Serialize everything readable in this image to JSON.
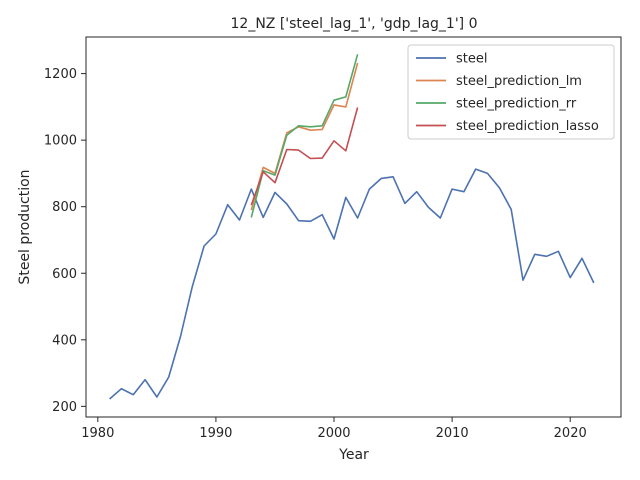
{
  "chart_data": {
    "type": "line",
    "title": "12_NZ ['steel_lag_1', 'gdp_lag_1'] 0",
    "xlabel": "Year",
    "ylabel": "Steel production",
    "xlim": [
      1979,
      2024.3
    ],
    "ylim": [
      168,
      1310
    ],
    "xticks": [
      1980,
      1990,
      2000,
      2010,
      2020
    ],
    "yticks": [
      200,
      400,
      600,
      800,
      1000,
      1200
    ],
    "grid": false,
    "legend": "top-right",
    "series": [
      {
        "name": "steel",
        "color": "#4c72b0",
        "x": [
          1981,
          1982,
          1983,
          1984,
          1985,
          1986,
          1987,
          1988,
          1989,
          1990,
          1991,
          1992,
          1993,
          1994,
          1995,
          1996,
          1997,
          1998,
          1999,
          2000,
          2001,
          2002,
          2003,
          2004,
          2005,
          2006,
          2007,
          2008,
          2009,
          2010,
          2011,
          2012,
          2013,
          2014,
          2015,
          2016,
          2017,
          2018,
          2019,
          2020,
          2021,
          2022
        ],
        "y": [
          222,
          253,
          235,
          280,
          228,
          288,
          410,
          560,
          682,
          718,
          806,
          760,
          853,
          768,
          843,
          808,
          758,
          756,
          776,
          703,
          828,
          766,
          853,
          885,
          890,
          810,
          845,
          798,
          766,
          853,
          845,
          913,
          900,
          857,
          792,
          579,
          657,
          651,
          666,
          587,
          645,
          571
        ]
      },
      {
        "name": "steel_prediction_lm",
        "color": "#dd8452",
        "x": [
          1993,
          1994,
          1995,
          1996,
          1997,
          1998,
          1999,
          2000,
          2001,
          2002
        ],
        "y": [
          790,
          918,
          900,
          1022,
          1040,
          1030,
          1032,
          1106,
          1100,
          1232
        ]
      },
      {
        "name": "steel_prediction_rr",
        "color": "#55a868",
        "x": [
          1993,
          1994,
          1995,
          1996,
          1997,
          1998,
          1999,
          2000,
          2001,
          2002
        ],
        "y": [
          768,
          908,
          895,
          1015,
          1043,
          1040,
          1043,
          1120,
          1130,
          1258
        ]
      },
      {
        "name": "steel_prediction_lasso",
        "color": "#c44e52",
        "x": [
          1993,
          1994,
          1995,
          1996,
          1997,
          1998,
          1999,
          2000,
          2001,
          2002
        ],
        "y": [
          805,
          905,
          872,
          972,
          970,
          945,
          946,
          998,
          968,
          1098
        ]
      }
    ]
  }
}
